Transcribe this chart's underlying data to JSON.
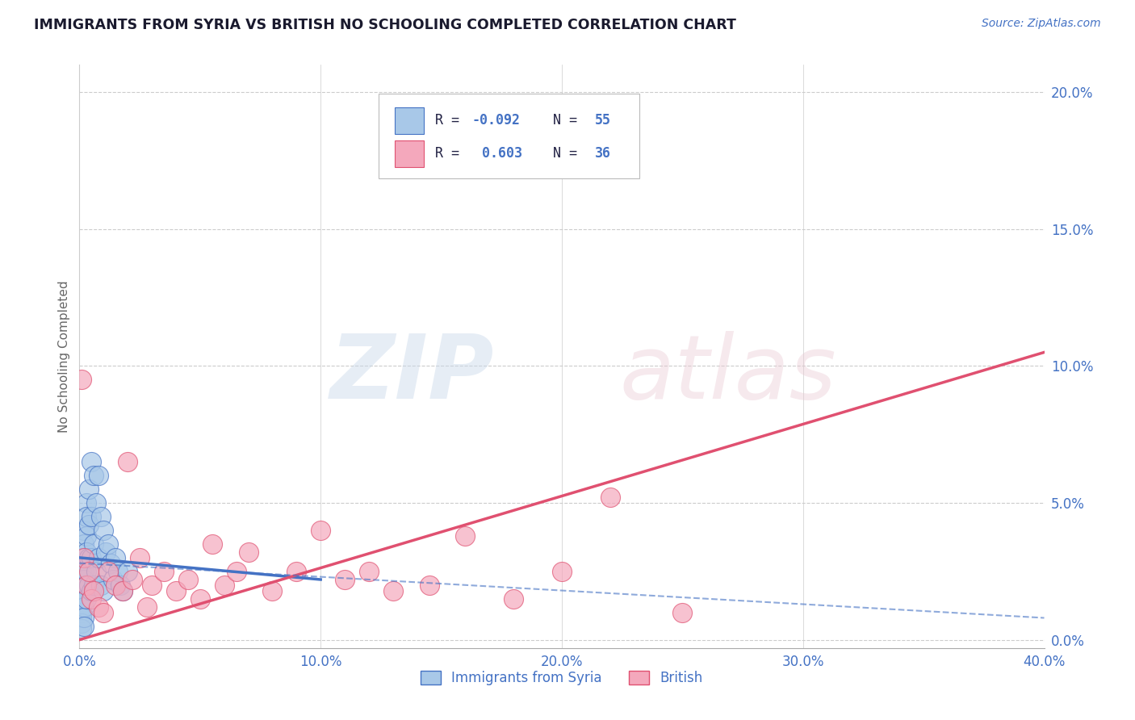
{
  "title": "IMMIGRANTS FROM SYRIA VS BRITISH NO SCHOOLING COMPLETED CORRELATION CHART",
  "source": "Source: ZipAtlas.com",
  "ylabel": "No Schooling Completed",
  "xlabel_range": [
    0.0,
    0.4
  ],
  "ylabel_range": [
    -0.003,
    0.21
  ],
  "xtick_vals": [
    0.0,
    0.1,
    0.2,
    0.3,
    0.4
  ],
  "ytick_vals": [
    0.0,
    0.05,
    0.1,
    0.15,
    0.2
  ],
  "xtick_labels": [
    "0.0%",
    "10.0%",
    "20.0%",
    "30.0%",
    "40.0%"
  ],
  "ytick_labels": [
    "0.0%",
    "5.0%",
    "10.0%",
    "15.0%",
    "20.0%"
  ],
  "legend1_r": "-0.092",
  "legend1_n": "55",
  "legend2_r": "0.603",
  "legend2_n": "36",
  "color_syria": "#a8c8e8",
  "color_british": "#f4a8bc",
  "color_syria_edge": "#4472c4",
  "color_british_edge": "#e05070",
  "color_blue_text": "#4472c4",
  "color_dark_text": "#222244",
  "color_grid": "#cccccc",
  "syria_x": [
    0.001,
    0.001,
    0.001,
    0.001,
    0.001,
    0.001,
    0.001,
    0.001,
    0.001,
    0.001,
    0.002,
    0.002,
    0.002,
    0.002,
    0.002,
    0.002,
    0.002,
    0.002,
    0.002,
    0.002,
    0.003,
    0.003,
    0.003,
    0.003,
    0.003,
    0.003,
    0.003,
    0.004,
    0.004,
    0.004,
    0.004,
    0.005,
    0.005,
    0.005,
    0.005,
    0.006,
    0.006,
    0.006,
    0.007,
    0.007,
    0.008,
    0.008,
    0.009,
    0.009,
    0.01,
    0.01,
    0.011,
    0.012,
    0.013,
    0.014,
    0.015,
    0.016,
    0.017,
    0.018,
    0.02
  ],
  "syria_y": [
    0.03,
    0.025,
    0.02,
    0.018,
    0.015,
    0.012,
    0.01,
    0.008,
    0.006,
    0.004,
    0.04,
    0.035,
    0.03,
    0.025,
    0.022,
    0.018,
    0.015,
    0.012,
    0.008,
    0.005,
    0.05,
    0.045,
    0.038,
    0.032,
    0.025,
    0.02,
    0.015,
    0.055,
    0.042,
    0.03,
    0.02,
    0.065,
    0.045,
    0.03,
    0.018,
    0.06,
    0.035,
    0.02,
    0.05,
    0.025,
    0.06,
    0.03,
    0.045,
    0.02,
    0.04,
    0.018,
    0.032,
    0.035,
    0.028,
    0.022,
    0.03,
    0.025,
    0.02,
    0.018,
    0.025
  ],
  "british_x": [
    0.001,
    0.002,
    0.003,
    0.004,
    0.005,
    0.006,
    0.008,
    0.01,
    0.012,
    0.015,
    0.018,
    0.02,
    0.022,
    0.025,
    0.028,
    0.03,
    0.035,
    0.04,
    0.045,
    0.05,
    0.055,
    0.06,
    0.065,
    0.07,
    0.08,
    0.09,
    0.1,
    0.11,
    0.12,
    0.13,
    0.145,
    0.16,
    0.18,
    0.2,
    0.22,
    0.25
  ],
  "british_y": [
    0.095,
    0.03,
    0.02,
    0.025,
    0.015,
    0.018,
    0.012,
    0.01,
    0.025,
    0.02,
    0.018,
    0.065,
    0.022,
    0.03,
    0.012,
    0.02,
    0.025,
    0.018,
    0.022,
    0.015,
    0.035,
    0.02,
    0.025,
    0.032,
    0.018,
    0.025,
    0.04,
    0.022,
    0.025,
    0.018,
    0.02,
    0.038,
    0.015,
    0.025,
    0.052,
    0.01
  ],
  "syria_trend_x": [
    0.0,
    0.1
  ],
  "syria_trend_y": [
    0.03,
    0.022
  ],
  "british_trend_x": [
    0.0,
    0.4
  ],
  "british_trend_y": [
    0.0,
    0.105
  ],
  "dash_trend_x": [
    0.0,
    0.4
  ],
  "dash_trend_y": [
    0.028,
    0.008
  ]
}
